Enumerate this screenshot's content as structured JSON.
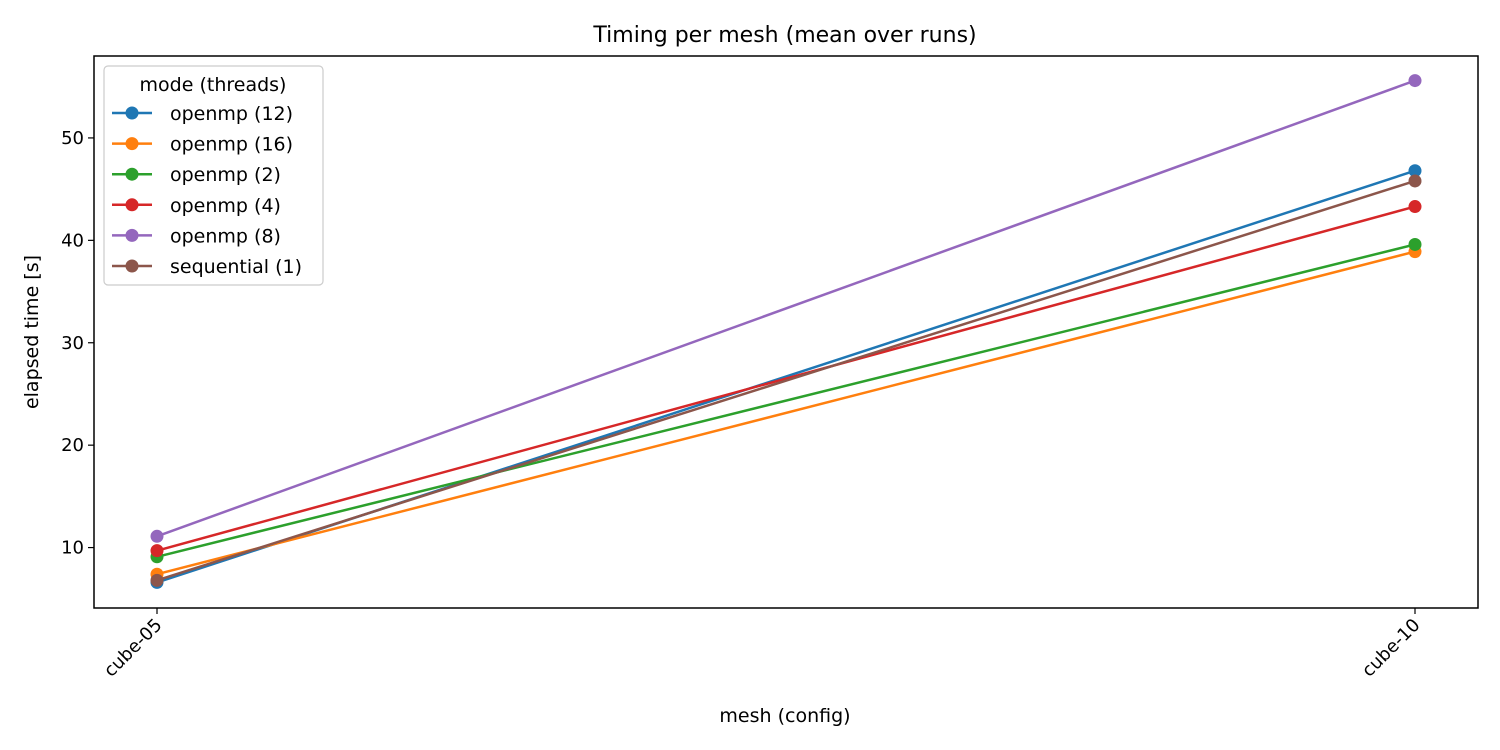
{
  "chart_data": {
    "type": "line",
    "title": "Timing per mesh (mean over runs)",
    "xlabel": "mesh (config)",
    "ylabel": "elapsed time [s]",
    "categories": [
      "cube-05",
      "cube-10"
    ],
    "ylim": [
      4.1,
      58.0
    ],
    "yticks": [
      10,
      20,
      30,
      40,
      50
    ],
    "grid": false,
    "legend": {
      "title": "mode (threads)",
      "placement": "top-left"
    },
    "series": [
      {
        "name": "openmp (12)",
        "color": "#1f77b4",
        "values": [
          6.6,
          46.8
        ]
      },
      {
        "name": "openmp (16)",
        "color": "#ff7f0e",
        "values": [
          7.4,
          38.9
        ]
      },
      {
        "name": "openmp (2)",
        "color": "#2ca02c",
        "values": [
          9.1,
          39.6
        ]
      },
      {
        "name": "openmp (4)",
        "color": "#d62728",
        "values": [
          9.7,
          43.3
        ]
      },
      {
        "name": "openmp (8)",
        "color": "#9467bd",
        "values": [
          11.1,
          55.6
        ]
      },
      {
        "name": "sequential (1)",
        "color": "#8c564b",
        "values": [
          6.8,
          45.8
        ]
      }
    ]
  }
}
